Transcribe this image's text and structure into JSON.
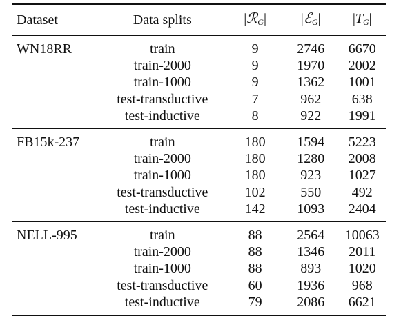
{
  "table": {
    "headers": {
      "dataset": "Dataset",
      "splits": "Data splits",
      "relations": {
        "symbol": "ℛ",
        "sub": "G"
      },
      "entities": {
        "symbol": "ℰ",
        "sub": "G"
      },
      "triples": {
        "symbol": "T",
        "sub": "G"
      }
    },
    "groups": [
      {
        "dataset": "WN18RR",
        "rows": [
          {
            "split": "train",
            "r": "9",
            "e": "2746",
            "t": "6670"
          },
          {
            "split": "train-2000",
            "r": "9",
            "e": "1970",
            "t": "2002"
          },
          {
            "split": "train-1000",
            "r": "9",
            "e": "1362",
            "t": "1001"
          },
          {
            "split": "test-transductive",
            "r": "7",
            "e": "962",
            "t": "638"
          },
          {
            "split": "test-inductive",
            "r": "8",
            "e": "922",
            "t": "1991"
          }
        ]
      },
      {
        "dataset": "FB15k-237",
        "rows": [
          {
            "split": "train",
            "r": "180",
            "e": "1594",
            "t": "5223"
          },
          {
            "split": "train-2000",
            "r": "180",
            "e": "1280",
            "t": "2008"
          },
          {
            "split": "train-1000",
            "r": "180",
            "e": "923",
            "t": "1027"
          },
          {
            "split": "test-transductive",
            "r": "102",
            "e": "550",
            "t": "492"
          },
          {
            "split": "test-inductive",
            "r": "142",
            "e": "1093",
            "t": "2404"
          }
        ]
      },
      {
        "dataset": "NELL-995",
        "rows": [
          {
            "split": "train",
            "r": "88",
            "e": "2564",
            "t": "10063"
          },
          {
            "split": "train-2000",
            "r": "88",
            "e": "1346",
            "t": "2011"
          },
          {
            "split": "train-1000",
            "r": "88",
            "e": "893",
            "t": "1020"
          },
          {
            "split": "test-transductive",
            "r": "60",
            "e": "1936",
            "t": "968"
          },
          {
            "split": "test-inductive",
            "r": "79",
            "e": "2086",
            "t": "6621"
          }
        ]
      }
    ]
  }
}
